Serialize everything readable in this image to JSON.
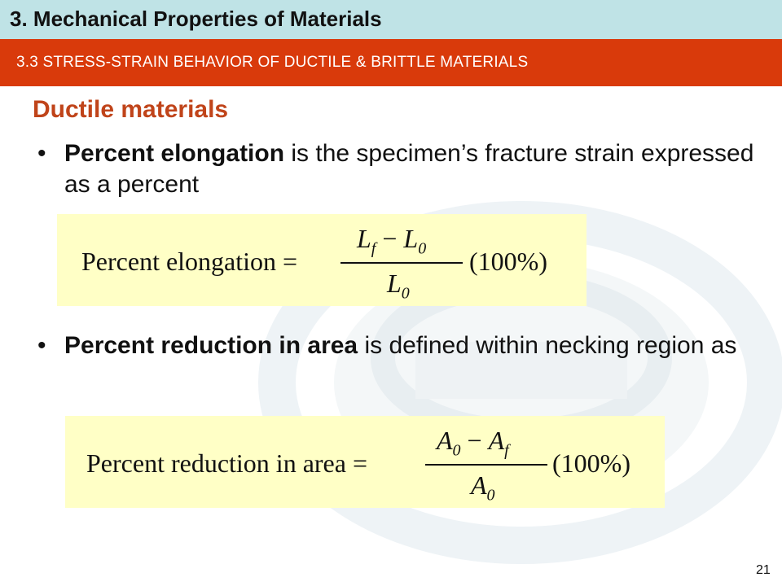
{
  "header": {
    "title": "3. Mechanical Properties of Materials",
    "section": "3.3 STRESS-STRAIN BEHAVIOR OF DUCTILE & BRITTLE MATERIALS"
  },
  "content": {
    "heading": "Ductile materials",
    "bullets": [
      {
        "bold": "Percent elongation",
        "rest": " is the specimen’s fracture strain expressed as a percent"
      },
      {
        "bold": "Percent reduction in area",
        "rest": " is defined within necking region as"
      }
    ]
  },
  "formulas": {
    "elongation": {
      "lhs": "Percent elongation =",
      "num_l": "L",
      "num_l_sub": "f",
      "minus": "−",
      "num_r": "L",
      "num_r_sub": "0",
      "den": "L",
      "den_sub": "0",
      "factor": "(100%)"
    },
    "area": {
      "lhs": "Percent reduction in area =",
      "num_l": "A",
      "num_l_sub": "0",
      "minus": "−",
      "num_r": "A",
      "num_r_sub": "f",
      "den": "A",
      "den_sub": "0",
      "factor": "(100%)"
    }
  },
  "footer": {
    "slide_number": "21"
  },
  "colors": {
    "title_bar": "#bfe3e6",
    "section_bar": "#d93a0b",
    "heading": "#c0441a",
    "formula_bg": "#ffffc6"
  },
  "icons": {
    "watermark": "university-logo-watermark-icon"
  }
}
